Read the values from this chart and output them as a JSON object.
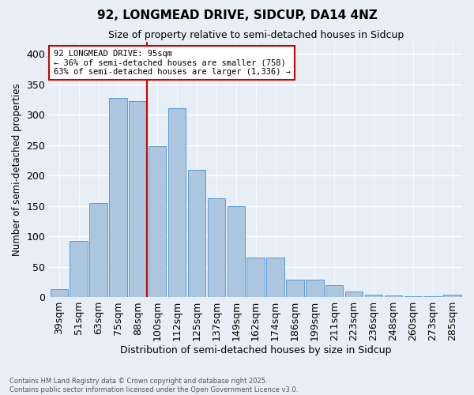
{
  "title_line1": "92, LONGMEAD DRIVE, SIDCUP, DA14 4NZ",
  "title_line2": "Size of property relative to semi-detached houses in Sidcup",
  "xlabel": "Distribution of semi-detached houses by size in Sidcup",
  "ylabel": "Number of semi-detached properties",
  "footnote_line1": "Contains HM Land Registry data © Crown copyright and database right 2025.",
  "footnote_line2": "Contains public sector information licensed under the Open Government Licence v3.0.",
  "bar_labels": [
    "39sqm",
    "51sqm",
    "63sqm",
    "75sqm",
    "88sqm",
    "100sqm",
    "112sqm",
    "125sqm",
    "137sqm",
    "149sqm",
    "162sqm",
    "174sqm",
    "186sqm",
    "199sqm",
    "211sqm",
    "223sqm",
    "236sqm",
    "248sqm",
    "260sqm",
    "273sqm",
    "285sqm"
  ],
  "bar_values": [
    13,
    93,
    155,
    328,
    323,
    248,
    311,
    209,
    162,
    150,
    65,
    65,
    29,
    29,
    20,
    9,
    4,
    3,
    2,
    1,
    4
  ],
  "bar_color": "#adc6e0",
  "bar_edge_color": "#5b9bd5",
  "background_color": "#e8eef5",
  "plot_bg_color": "#e8eef5",
  "grid_color": "#ffffff",
  "property_bin_index": 4,
  "property_line_color": "#cc0000",
  "annotation_text": "92 LONGMEAD DRIVE: 95sqm\n← 36% of semi-detached houses are smaller (758)\n63% of semi-detached houses are larger (1,336) →",
  "annotation_box_color": "#cc0000",
  "ylim": [
    0,
    420
  ],
  "yticks": [
    0,
    50,
    100,
    150,
    200,
    250,
    300,
    350,
    400
  ]
}
